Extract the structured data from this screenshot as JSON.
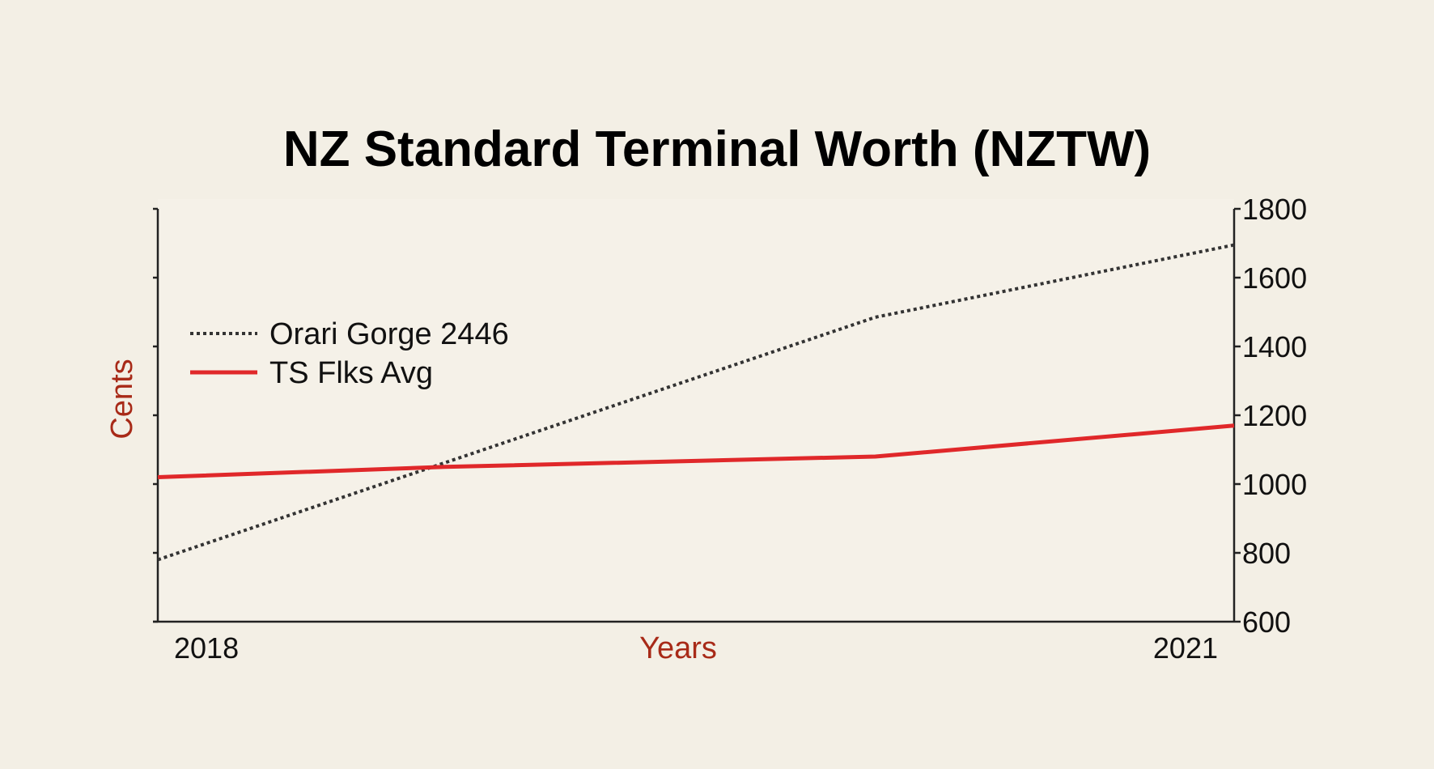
{
  "chart_data": {
    "type": "line",
    "title": "NZ Standard Terminal Worth (NZTW)",
    "xlabel": "Years",
    "ylabel": "Cents",
    "x": [
      2018,
      2019,
      2020,
      2021
    ],
    "x_tick_labels": [
      "2018",
      "2021"
    ],
    "xlim": [
      2018,
      2021
    ],
    "ylim": [
      600,
      1800
    ],
    "y_ticks": [
      600,
      800,
      1000,
      1200,
      1400,
      1600,
      1800
    ],
    "y_axis_side": "right",
    "grid": false,
    "legend_position": "upper-left",
    "series": [
      {
        "name": "Orari Gorge 2446",
        "style": "dotted",
        "color": "#333333",
        "x": [
          2018,
          2020,
          2021
        ],
        "values": [
          780,
          1485,
          1695
        ]
      },
      {
        "name": "TS Flks Avg",
        "style": "solid",
        "color": "#e0282a",
        "x": [
          2018,
          2018.8,
          2020,
          2021
        ],
        "values": [
          1020,
          1050,
          1080,
          1170
        ]
      }
    ],
    "colors": {
      "background": "#f3efe5",
      "plot_background": "#f5f1e8",
      "axis": "#222222",
      "axis_label": "#a82a18",
      "title": "#000000"
    }
  }
}
